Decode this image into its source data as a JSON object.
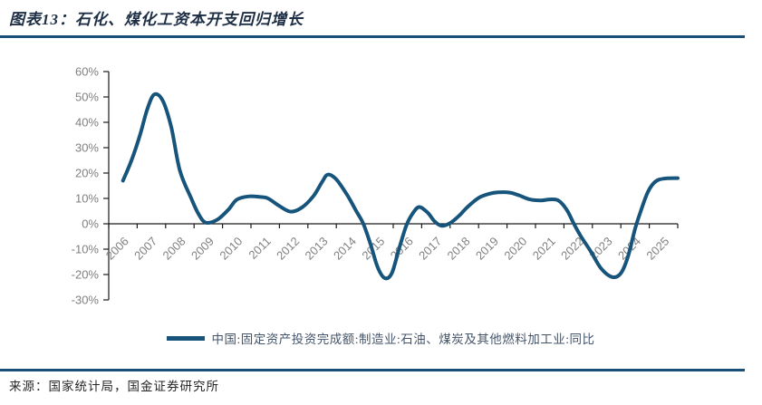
{
  "header": {
    "title": "图表13：石化、煤化工资本开支回归增长"
  },
  "footer": {
    "source": "来源：国家统计局，国金证券研究所"
  },
  "legend": {
    "label": "中国:固定资产投资完成额:制造业:石油、煤炭及其他燃料加工业:同比"
  },
  "colors": {
    "series_line": "#17547c",
    "rule": "#1a4f78",
    "axis": "#1a1a1a",
    "tick_label": "#808080"
  },
  "chart_data": {
    "type": "line",
    "title": "图表13：石化、煤化工资本开支回归增长",
    "xlabel": "",
    "ylabel": "",
    "x_categories": [
      "2006",
      "2007",
      "2008",
      "2009",
      "2010",
      "2011",
      "2012",
      "2013",
      "2014",
      "2015",
      "2016",
      "2017",
      "2018",
      "2019",
      "2020",
      "2021",
      "2022",
      "2023",
      "2024",
      "2025"
    ],
    "ylim": [
      -30,
      60
    ],
    "y_ticks": [
      60,
      50,
      40,
      30,
      20,
      10,
      0,
      -10,
      -20,
      -30
    ],
    "y_tick_format": "percent",
    "grid": false,
    "legend_position": "bottom",
    "series": [
      {
        "name": "中国:固定资产投资完成额:制造业:石油、煤炭及其他燃料加工业:同比",
        "color": "#17547c",
        "points": [
          [
            2006.0,
            17
          ],
          [
            2006.3,
            25
          ],
          [
            2006.6,
            35
          ],
          [
            2006.85,
            45
          ],
          [
            2007.1,
            51
          ],
          [
            2007.4,
            48.5
          ],
          [
            2007.7,
            38
          ],
          [
            2008.0,
            21
          ],
          [
            2008.4,
            10
          ],
          [
            2008.65,
            4
          ],
          [
            2008.9,
            0.5
          ],
          [
            2009.3,
            1.5
          ],
          [
            2009.7,
            5.5
          ],
          [
            2010.0,
            9.5
          ],
          [
            2010.4,
            10.8
          ],
          [
            2010.8,
            10.6
          ],
          [
            2011.1,
            10
          ],
          [
            2011.5,
            7
          ],
          [
            2011.9,
            4.8
          ],
          [
            2012.3,
            6.5
          ],
          [
            2012.7,
            11
          ],
          [
            2013.0,
            16.5
          ],
          [
            2013.2,
            19.4
          ],
          [
            2013.5,
            17.5
          ],
          [
            2013.9,
            11
          ],
          [
            2014.2,
            5
          ],
          [
            2014.45,
            0
          ],
          [
            2014.7,
            -8
          ],
          [
            2014.95,
            -17
          ],
          [
            2015.2,
            -21.4
          ],
          [
            2015.45,
            -19.5
          ],
          [
            2015.7,
            -10
          ],
          [
            2015.95,
            -1
          ],
          [
            2016.15,
            3.5
          ],
          [
            2016.4,
            6.6
          ],
          [
            2016.7,
            4.5
          ],
          [
            2016.95,
            1
          ],
          [
            2017.2,
            -0.8
          ],
          [
            2017.5,
            0.3
          ],
          [
            2017.8,
            3
          ],
          [
            2018.1,
            6.5
          ],
          [
            2018.5,
            10.2
          ],
          [
            2018.9,
            11.9
          ],
          [
            2019.2,
            12.4
          ],
          [
            2019.6,
            12.3
          ],
          [
            2019.9,
            11.3
          ],
          [
            2020.3,
            9.6
          ],
          [
            2020.7,
            9.2
          ],
          [
            2021.0,
            9.6
          ],
          [
            2021.3,
            9.2
          ],
          [
            2021.6,
            5.5
          ],
          [
            2021.85,
            0
          ],
          [
            2022.1,
            -5
          ],
          [
            2022.45,
            -11
          ],
          [
            2022.8,
            -17.5
          ],
          [
            2023.2,
            -21
          ],
          [
            2023.5,
            -19.5
          ],
          [
            2023.75,
            -13
          ],
          [
            2024.0,
            -2
          ],
          [
            2024.2,
            5
          ],
          [
            2024.45,
            12.5
          ],
          [
            2024.7,
            16.5
          ],
          [
            2025.0,
            17.8
          ],
          [
            2025.5,
            18
          ]
        ]
      }
    ]
  }
}
